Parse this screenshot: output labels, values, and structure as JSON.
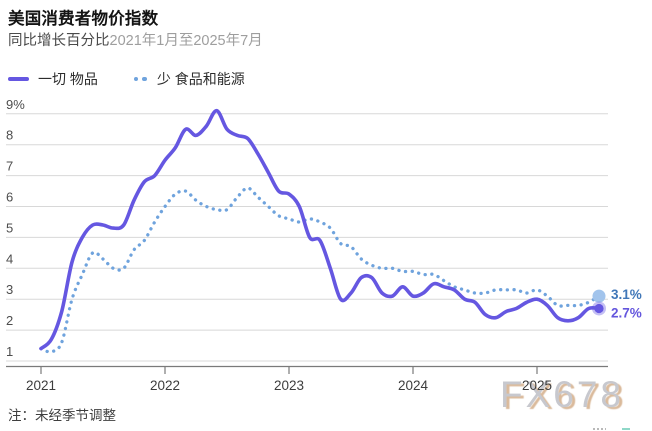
{
  "header": {
    "title": "美国消费者物价指数",
    "subtitle_main": "同比增长百分比",
    "subtitle_range": "2021年1月至2025年7月"
  },
  "legend": [
    {
      "label": "一切 物品",
      "style": "solid",
      "color": "#6557e1"
    },
    {
      "label": "少 食品和能源",
      "style": "dotted",
      "color": "#6fa3dd"
    }
  ],
  "note": "注：未经季节调整",
  "watermark": "FX678",
  "colors": {
    "grid": "#d8d8d8",
    "axis": "#7a7a7a",
    "y_label": "#4d4d4d",
    "x_label": "#3d3d3d",
    "solid_series": "#6557e1",
    "dotted_series": "#6fa3dd",
    "solid_end_label": "#6456dd",
    "dotted_end_label": "#4077b8",
    "dotted_marker_fill": "#a2c4ec",
    "solid_marker_halo": "rgba(101,87,225,0.38)"
  },
  "chart_data": {
    "type": "line",
    "title": "美国消费者物价指数",
    "subtitle": "同比增长百分比2021年1月至2025年7月",
    "x_start": "2021-01",
    "x_end": "2025-07",
    "x_tick_labels": [
      "2021",
      "2022",
      "2023",
      "2024",
      "2025"
    ],
    "y_ticks": [
      {
        "value": 9,
        "label": "9%"
      },
      {
        "value": 8,
        "label": "8"
      },
      {
        "value": 7,
        "label": "7"
      },
      {
        "value": 6,
        "label": "6"
      },
      {
        "value": 5,
        "label": "5"
      },
      {
        "value": 4,
        "label": "4"
      },
      {
        "value": 3,
        "label": "3"
      },
      {
        "value": 2,
        "label": "2"
      },
      {
        "value": 1,
        "label": "1"
      }
    ],
    "ylim": [
      1,
      9
    ],
    "grid": true,
    "legend_position": "top-left",
    "series": [
      {
        "name": "少 食品和能源",
        "style": "dotted",
        "color": "#6fa3dd",
        "end_label": "3.1%",
        "values": [
          1.4,
          1.3,
          1.6,
          3.0,
          3.8,
          4.5,
          4.3,
          4.0,
          4.0,
          4.6,
          4.9,
          5.5,
          6.0,
          6.4,
          6.5,
          6.2,
          6.0,
          5.9,
          5.9,
          6.3,
          6.6,
          6.3,
          6.0,
          5.7,
          5.6,
          5.5,
          5.6,
          5.5,
          5.3,
          4.8,
          4.7,
          4.3,
          4.1,
          4.0,
          4.0,
          3.9,
          3.9,
          3.8,
          3.8,
          3.6,
          3.4,
          3.3,
          3.2,
          3.2,
          3.3,
          3.3,
          3.3,
          3.2,
          3.3,
          3.1,
          2.8,
          2.8,
          2.8,
          2.9,
          3.1
        ]
      },
      {
        "name": "一切 物品",
        "style": "solid",
        "color": "#6557e1",
        "end_label": "2.7%",
        "values": [
          1.4,
          1.7,
          2.6,
          4.2,
          5.0,
          5.4,
          5.4,
          5.3,
          5.4,
          6.2,
          6.8,
          7.0,
          7.5,
          7.9,
          8.5,
          8.3,
          8.6,
          9.1,
          8.5,
          8.3,
          8.2,
          7.7,
          7.1,
          6.5,
          6.4,
          6.0,
          5.0,
          4.9,
          4.0,
          3.0,
          3.2,
          3.7,
          3.7,
          3.2,
          3.1,
          3.4,
          3.1,
          3.2,
          3.5,
          3.4,
          3.3,
          3.0,
          2.9,
          2.5,
          2.4,
          2.6,
          2.7,
          2.9,
          3.0,
          2.8,
          2.4,
          2.3,
          2.4,
          2.7,
          2.7
        ]
      }
    ]
  }
}
